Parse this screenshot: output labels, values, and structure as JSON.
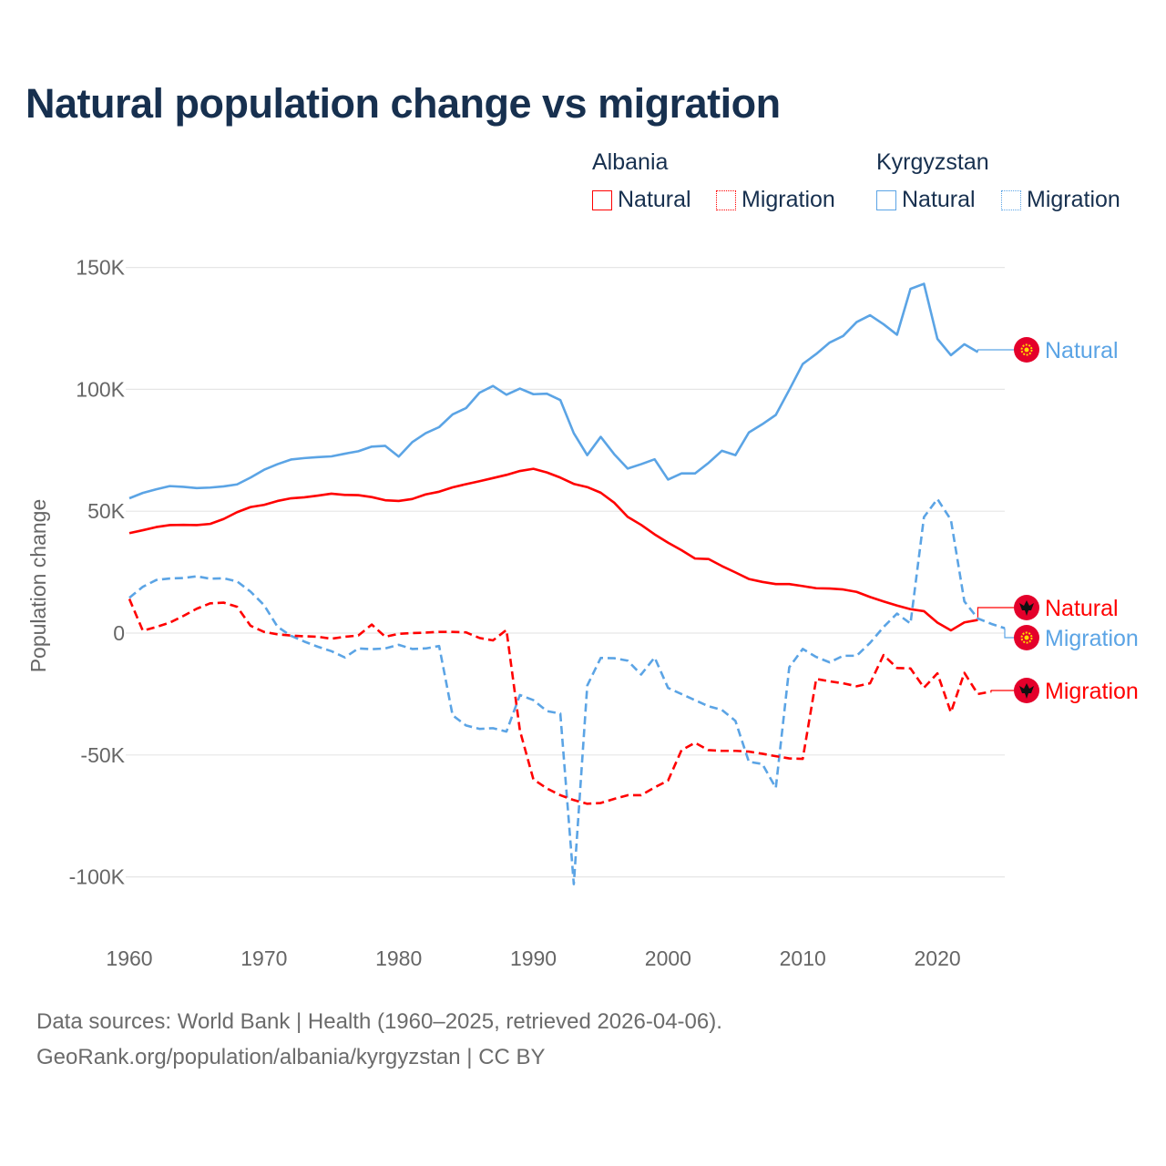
{
  "chart_data": {
    "type": "line",
    "title": "Natural population change vs migration",
    "xlabel": "",
    "ylabel": "Population change",
    "xlim": [
      1960,
      2025
    ],
    "ylim": [
      -100000,
      150000
    ],
    "x_ticks": [
      "1960",
      "1970",
      "1980",
      "1990",
      "2000",
      "2010",
      "2020"
    ],
    "x_tick_values": [
      1960,
      1970,
      1980,
      1990,
      2000,
      2010,
      2020
    ],
    "y_ticks": [
      "150K",
      "100K",
      "50K",
      "0",
      "-50K",
      "-100K"
    ],
    "y_tick_values": [
      150000,
      100000,
      50000,
      0,
      -50000,
      -100000
    ],
    "grid": true,
    "legend": {
      "placement": "top-right",
      "groups": [
        {
          "country": "Albania",
          "items": [
            "Natural",
            "Migration"
          ]
        },
        {
          "country": "Kyrgyzstan",
          "items": [
            "Natural",
            "Migration"
          ]
        }
      ]
    },
    "colors": {
      "Albania": "#ff0000",
      "Kyrgyzstan": "#5ba4e5"
    },
    "start_year": 1960,
    "series": [
      {
        "name": "Kyrgyzstan Natural",
        "country": "Kyrgyzstan",
        "kind": "Natural",
        "end_label": "Natural",
        "flag": "kyrgyzstan-flag-icon",
        "values": [
          55.3,
          57.5,
          59,
          60.3,
          60,
          59.5,
          59.7,
          60.2,
          61,
          63.8,
          67,
          69.3,
          71.2,
          71.8,
          72.2,
          72.5,
          73.6,
          74.6,
          76.5,
          76.8,
          72.4,
          78.3,
          82,
          84.5,
          89.7,
          92.3,
          98.6,
          101.4,
          97.8,
          100.3,
          98,
          98.2,
          95.6,
          82,
          73,
          80.5,
          73.4,
          67.5,
          69.3,
          71.3,
          63,
          65.5,
          65.5,
          69.8,
          74.8,
          73,
          82.3,
          85.7,
          89.5,
          99.8,
          110.4,
          114.5,
          119.2,
          121.9,
          127.6,
          130.4,
          126.7,
          122.4,
          141.2,
          143.3,
          120.7,
          114,
          118.5,
          115.3
        ]
      },
      {
        "name": "Albania Natural",
        "country": "Albania",
        "kind": "Natural",
        "end_label": "Natural",
        "flag": "albania-flag-icon",
        "values": [
          41,
          42.2,
          43.5,
          44.3,
          44.4,
          44.3,
          44.8,
          46.8,
          49.6,
          51.7,
          52.6,
          54.2,
          55.3,
          55.7,
          56.4,
          57.2,
          56.7,
          56.6,
          55.8,
          54.5,
          54.2,
          55,
          56.9,
          58,
          59.8,
          61.1,
          62.3,
          63.6,
          64.9,
          66.5,
          67.4,
          65.9,
          63.8,
          61.2,
          59.9,
          57.6,
          53.5,
          47.7,
          44.4,
          40.5,
          37.1,
          34,
          30.6,
          30.4,
          27.5,
          24.9,
          22.2,
          21,
          20.1,
          20.1,
          19.3,
          18.4,
          18.3,
          17.9,
          16.9,
          14.8,
          13,
          11.3,
          9.8,
          9,
          4.3,
          1.1,
          4.4,
          5.4
        ]
      },
      {
        "name": "Kyrgyzstan Migration",
        "country": "Kyrgyzstan",
        "kind": "Migration",
        "end_label": "Migration",
        "flag": "kyrgyzstan-flag-icon",
        "values": [
          14.5,
          19,
          21.8,
          22.4,
          22.6,
          23.3,
          22.3,
          22.5,
          21.2,
          17,
          11.5,
          2.6,
          -1.1,
          -3.5,
          -5.6,
          -7.4,
          -10,
          -6.3,
          -6.6,
          -6.3,
          -4.8,
          -6.5,
          -6.3,
          -5.3,
          -33.7,
          -37.9,
          -39.3,
          -39,
          -40.4,
          -25.4,
          -27.5,
          -32,
          -33,
          -103,
          -21.5,
          -10.2,
          -10.3,
          -11.3,
          -17,
          -10,
          -22.5,
          -25,
          -27.5,
          -30,
          -31.5,
          -36,
          -52.8,
          -53.7,
          -63.5,
          -14,
          -6.5,
          -9.8,
          -12,
          -9.3,
          -9.3,
          -4,
          2.5,
          8,
          3.9,
          47.6,
          55,
          46.5,
          13,
          6,
          3.8,
          2
        ]
      },
      {
        "name": "Albania Migration",
        "country": "Albania",
        "kind": "Migration",
        "end_label": "Migration",
        "flag": "albania-flag-icon",
        "values": [
          14,
          1,
          2.5,
          4.3,
          7,
          10,
          12.2,
          12.5,
          10.8,
          3,
          0.5,
          -0.5,
          -1,
          -1.3,
          -1.5,
          -2.3,
          -1.5,
          -1,
          3.5,
          -1.5,
          -0.3,
          0,
          0.2,
          0.5,
          0.5,
          0.3,
          -2,
          -3,
          1.3,
          -40,
          -60,
          -63.7,
          -66.5,
          -68.5,
          -70,
          -69.7,
          -68,
          -66.5,
          -66.5,
          -63.3,
          -60.5,
          -48,
          -45,
          -48,
          -48.3,
          -48.3,
          -48.6,
          -49.5,
          -50.5,
          -51.4,
          -51.6,
          -18.8,
          -19.8,
          -20.6,
          -21.8,
          -20.6,
          -9,
          -14.3,
          -14.5,
          -22.4,
          -16.5,
          -32.5,
          -16.3,
          -25,
          -24
        ]
      }
    ],
    "value_unit": "thousands"
  },
  "footer": {
    "line1": "Data sources: World Bank | Health (1960–2025, retrieved 2026-04-06).",
    "line2": "GeoRank.org/population/albania/kyrgyzstan | CC BY"
  }
}
